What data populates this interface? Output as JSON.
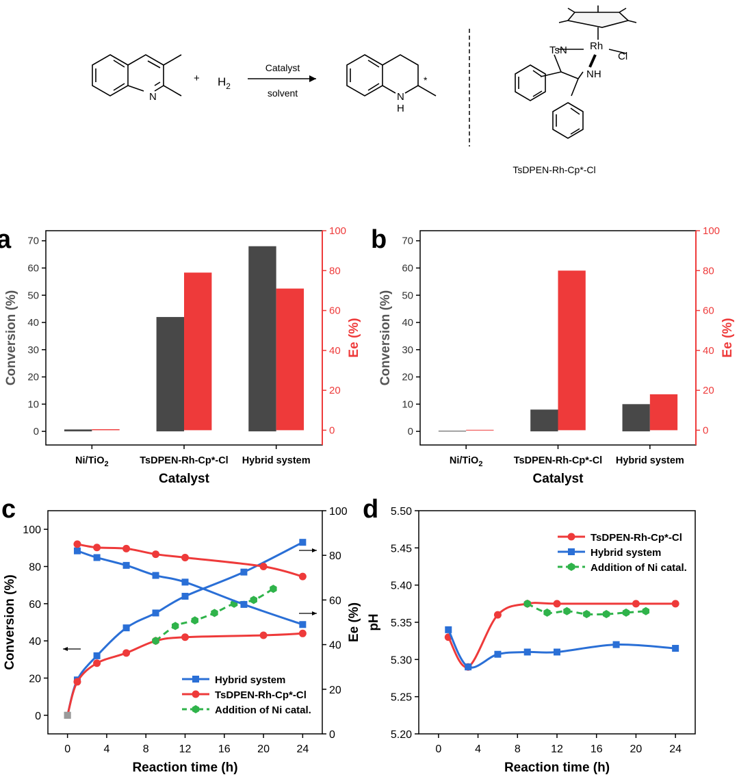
{
  "scheme": {
    "reactant_n": "N",
    "plus1": "+",
    "h2": "H",
    "h2_sub": "2",
    "arrow_top": "Catalyst",
    "arrow_bottom": "solvent",
    "product_nh": "N",
    "product_h": "H",
    "product_star": "*",
    "catalyst_name": "TsDPEN-Rh-Cp*-Cl",
    "cat_tsn": "TsN",
    "cat_rh": "Rh",
    "cat_cl": "Cl",
    "cat_nh": "NH"
  },
  "colors": {
    "gray": "#484848",
    "red": "#ee3a3a",
    "blue": "#2a6fd6",
    "green": "#2fb34a"
  },
  "chart_data": [
    {
      "panel": "a",
      "type": "bar",
      "categories": [
        "Ni/TiO₂",
        "TsDPEN-Rh-Cp*-Cl",
        "Hybrid system"
      ],
      "xlabel": "Catalyst",
      "ylabel": "Conversion (%)",
      "y2label": "Ee (%)",
      "ylim": [
        -5,
        73.7
      ],
      "y2lim": [
        -7.4,
        100
      ],
      "yticks": [
        0,
        10,
        20,
        30,
        40,
        50,
        60,
        70
      ],
      "y2ticks": [
        0,
        20,
        40,
        60,
        80,
        100
      ],
      "series": [
        {
          "name": "Conversion",
          "axis": "left",
          "values": [
            0.7,
            42,
            68
          ]
        },
        {
          "name": "Ee",
          "axis": "right",
          "values": [
            0.5,
            79,
            71
          ]
        }
      ]
    },
    {
      "panel": "b",
      "type": "bar",
      "categories": [
        "Ni/TiO₂",
        "TsDPEN-Rh-Cp*-Cl",
        "Hybrid system"
      ],
      "xlabel": "Catalyst",
      "ylabel": "Conversion (%)",
      "y2label": "Ee (%)",
      "ylim": [
        -5,
        73.7
      ],
      "y2lim": [
        -7.4,
        100
      ],
      "yticks": [
        0,
        10,
        20,
        30,
        40,
        50,
        60,
        70
      ],
      "y2ticks": [
        0,
        20,
        40,
        60,
        80,
        100
      ],
      "series": [
        {
          "name": "Conversion",
          "axis": "left",
          "values": [
            0.2,
            8,
            10
          ]
        },
        {
          "name": "Ee",
          "axis": "right",
          "values": [
            0.2,
            80,
            18
          ]
        }
      ]
    },
    {
      "panel": "c",
      "type": "line",
      "xlabel": "Reaction time (h)",
      "ylabel": "Conversion (%)",
      "y2label": "Ee (%)",
      "xlim": [
        -2,
        26
      ],
      "ylim": [
        -10,
        110
      ],
      "y2lim": [
        0,
        100
      ],
      "xticks": [
        0,
        4,
        8,
        12,
        16,
        20,
        24
      ],
      "yticks": [
        0,
        20,
        40,
        60,
        80,
        100
      ],
      "y2ticks": [
        0,
        20,
        40,
        60,
        80,
        100
      ],
      "legend": "bottom-right",
      "series": [
        {
          "name": "Hybrid system",
          "axis": "left",
          "color": "blue",
          "marker": "square",
          "legend": true,
          "x": [
            0,
            1,
            3,
            6,
            9,
            12,
            18,
            24
          ],
          "y": [
            0,
            19,
            32,
            47,
            55,
            64,
            77,
            93
          ]
        },
        {
          "name": "TsDPEN-Rh-Cp*-Cl",
          "axis": "left",
          "color": "red",
          "marker": "circle",
          "legend": true,
          "x": [
            0,
            1,
            3,
            6,
            9,
            12,
            20,
            24
          ],
          "y": [
            0,
            18,
            28,
            33.5,
            40,
            42,
            43,
            44
          ]
        },
        {
          "name": "Addition of Ni catal.",
          "axis": "left",
          "color": "green",
          "marker": "hexagon",
          "dashed": true,
          "legend": true,
          "x": [
            9,
            11,
            13,
            15,
            17,
            19,
            21
          ],
          "y": [
            40,
            48,
            51,
            55,
            60,
            62,
            68
          ]
        },
        {
          "name": "Hybrid system",
          "axis": "right",
          "color": "blue",
          "marker": "square",
          "legend": false,
          "x": [
            1,
            3,
            6,
            9,
            12,
            18,
            24
          ],
          "y": [
            82,
            79,
            75.5,
            71,
            68,
            58,
            49
          ]
        },
        {
          "name": "TsDPEN-Rh-Cp*-Cl",
          "axis": "right",
          "color": "red",
          "marker": "circle",
          "legend": false,
          "x": [
            1,
            3,
            6,
            9,
            12,
            20,
            24
          ],
          "y": [
            85,
            83.5,
            83,
            80.5,
            79,
            75,
            70.5
          ]
        }
      ]
    },
    {
      "panel": "d",
      "type": "line",
      "xlabel": "Reaction time (h)",
      "ylabel": "pH",
      "xlim": [
        -2,
        26
      ],
      "ylim": [
        5.2,
        5.5
      ],
      "xticks": [
        0,
        4,
        8,
        12,
        16,
        20,
        24
      ],
      "yticks": [
        5.2,
        5.25,
        5.3,
        5.35,
        5.4,
        5.45,
        5.5
      ],
      "legend": "top-right",
      "series": [
        {
          "name": "TsDPEN-Rh-Cp*-Cl",
          "color": "red",
          "marker": "circle",
          "x": [
            1,
            3,
            6,
            9,
            12,
            20,
            24
          ],
          "y": [
            5.33,
            5.29,
            5.36,
            5.375,
            5.375,
            5.375,
            5.375
          ]
        },
        {
          "name": "Hybrid system",
          "color": "blue",
          "marker": "square",
          "x": [
            1,
            3,
            6,
            9,
            12,
            18,
            24
          ],
          "y": [
            5.34,
            5.29,
            5.307,
            5.31,
            5.31,
            5.32,
            5.315
          ]
        },
        {
          "name": "Addition of Ni catal.",
          "color": "green",
          "marker": "hexagon",
          "dashed": true,
          "x": [
            9,
            11,
            13,
            15,
            17,
            19,
            21
          ],
          "y": [
            5.375,
            5.363,
            5.365,
            5.361,
            5.361,
            5.363,
            5.365
          ]
        }
      ]
    }
  ]
}
